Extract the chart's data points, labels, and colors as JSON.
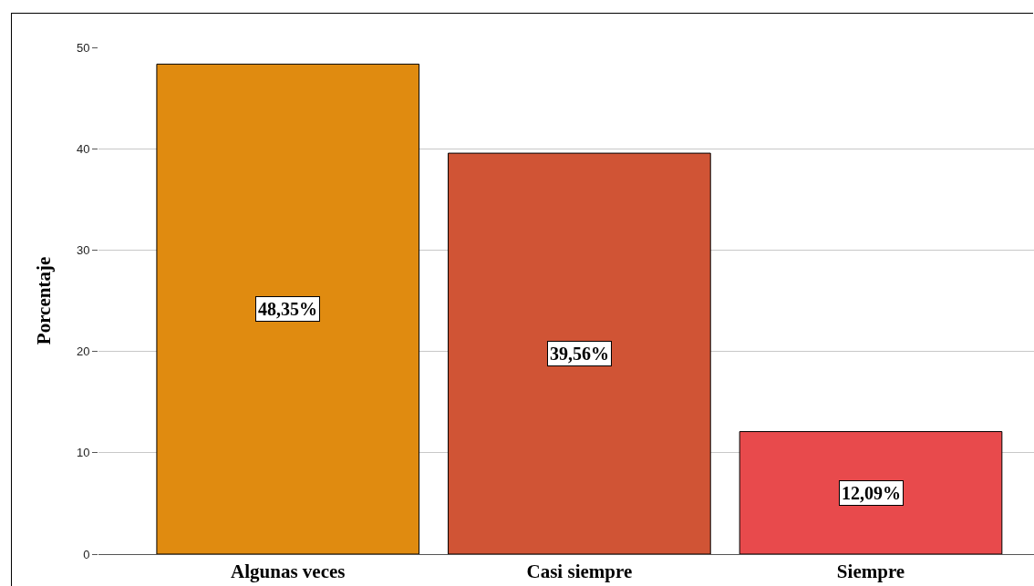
{
  "chart_data": {
    "type": "bar",
    "ylabel": "Porcentaje",
    "categories": [
      "Algunas veces",
      "Casi siempre",
      "Siempre"
    ],
    "values": [
      48.35,
      39.56,
      12.09
    ],
    "value_labels": [
      "48,35%",
      "39,56%",
      "12,09%"
    ],
    "colors": [
      "#e08b10",
      "#d05435",
      "#e84a4c"
    ],
    "ylim": [
      0,
      50
    ],
    "yticks": [
      0,
      10,
      20,
      30,
      40,
      50
    ],
    "grid": "y"
  }
}
